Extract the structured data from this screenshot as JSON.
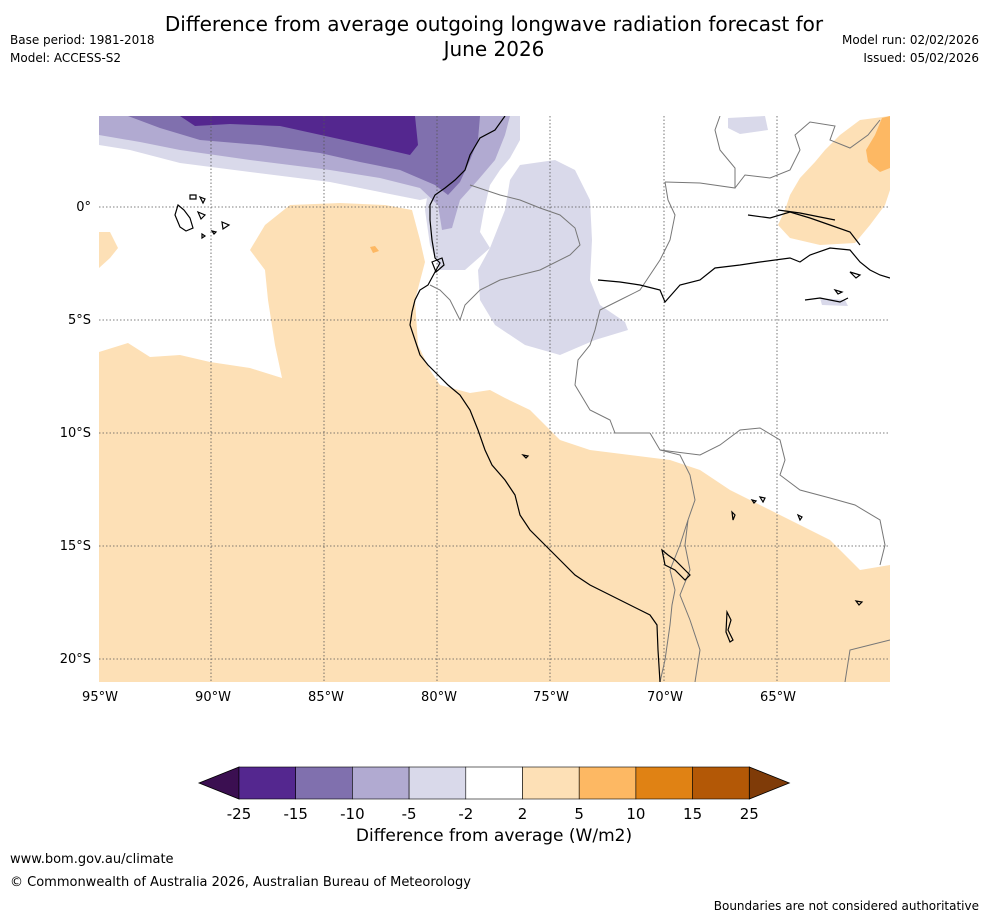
{
  "title_line1": "Difference from average outgoing longwave radiation forecast for",
  "title_line2": "June 2026",
  "meta_left": {
    "base_period": "Base period: 1981-2018",
    "model": "Model: ACCESS-S2"
  },
  "meta_right": {
    "model_run": "Model run: 02/02/2026",
    "issued": "Issued: 05/02/2026"
  },
  "axes": {
    "x_ticks": [
      "95°W",
      "90°W",
      "85°W",
      "80°W",
      "75°W",
      "70°W",
      "65°W"
    ],
    "y_ticks": [
      "0°",
      "5°S",
      "10°S",
      "15°S",
      "20°S"
    ]
  },
  "colorbar": {
    "title": "Difference from average (W/m2)",
    "tick_labels": [
      "-25",
      "-15",
      "-10",
      "-5",
      "-2",
      "2",
      "5",
      "10",
      "15",
      "25"
    ],
    "colors": [
      "#3b0f51",
      "#54278f",
      "#8070ae",
      "#b1aad1",
      "#d9d9ea",
      "#ffffff",
      "#fde0b6",
      "#fdb863",
      "#e08214",
      "#b35806",
      "#7f3b08"
    ]
  },
  "footer": {
    "url": "www.bom.gov.au/climate",
    "copyright": "© Commonwealth of Australia 2026, Australian Bureau of Meteorology",
    "note": "Boundaries are not considered authoritative"
  }
}
